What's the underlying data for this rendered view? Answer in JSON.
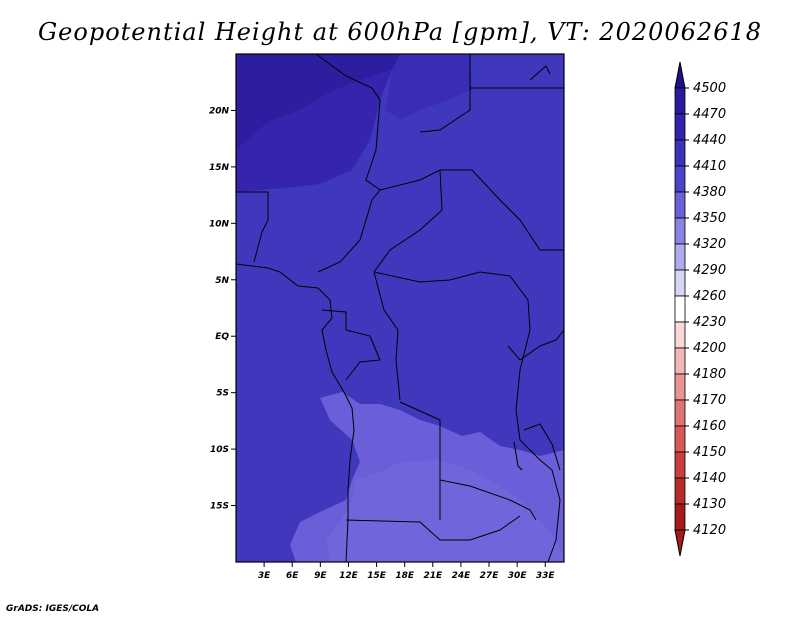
{
  "title": "Geopotential Height at 600hPa [gpm], VT: 2020062618",
  "credit": "GrADS: IGES/COLA",
  "map": {
    "lon_range": [
      0,
      35
    ],
    "lat_range": [
      -20,
      25
    ],
    "lat_ticks": [
      {
        "value": 20,
        "label": "20N"
      },
      {
        "value": 15,
        "label": "15N"
      },
      {
        "value": 10,
        "label": "10N"
      },
      {
        "value": 5,
        "label": "5N"
      },
      {
        "value": 0,
        "label": "EQ"
      },
      {
        "value": -5,
        "label": "5S"
      },
      {
        "value": -10,
        "label": "10S"
      },
      {
        "value": -15,
        "label": "15S"
      }
    ],
    "lon_ticks": [
      {
        "value": 3,
        "label": "3E"
      },
      {
        "value": 6,
        "label": "6E"
      },
      {
        "value": 9,
        "label": "9E"
      },
      {
        "value": 12,
        "label": "12E"
      },
      {
        "value": 15,
        "label": "15E"
      },
      {
        "value": 18,
        "label": "18E"
      },
      {
        "value": 21,
        "label": "21E"
      },
      {
        "value": 24,
        "label": "24E"
      },
      {
        "value": 27,
        "label": "27E"
      },
      {
        "value": 30,
        "label": "30E"
      },
      {
        "value": 33,
        "label": "33E"
      }
    ]
  },
  "colorbar": {
    "levels": [
      {
        "label": "4500",
        "color": "#1e0f8c"
      },
      {
        "label": "4470",
        "color": "#2a1b9c"
      },
      {
        "label": "4440",
        "color": "#3322aa"
      },
      {
        "label": "4410",
        "color": "#3c34b8"
      },
      {
        "label": "4380",
        "color": "#4a44c8"
      },
      {
        "label": "4350",
        "color": "#6a60d8"
      },
      {
        "label": "4320",
        "color": "#8a82e2"
      },
      {
        "label": "4290",
        "color": "#b0aaee"
      },
      {
        "label": "4260",
        "color": "#d8d6f6"
      },
      {
        "label": "4230",
        "color": "#ffffff"
      },
      {
        "label": "4200",
        "color": "#f8d8d8"
      },
      {
        "label": "4180",
        "color": "#f2b6b6"
      },
      {
        "label": "4170",
        "color": "#ea9494"
      },
      {
        "label": "4160",
        "color": "#e07474"
      },
      {
        "label": "4150",
        "color": "#d85858"
      },
      {
        "label": "4140",
        "color": "#cc3e3e"
      },
      {
        "label": "4130",
        "color": "#bb2a2a"
      },
      {
        "label": "4120",
        "color": "#a51a1a"
      }
    ]
  }
}
